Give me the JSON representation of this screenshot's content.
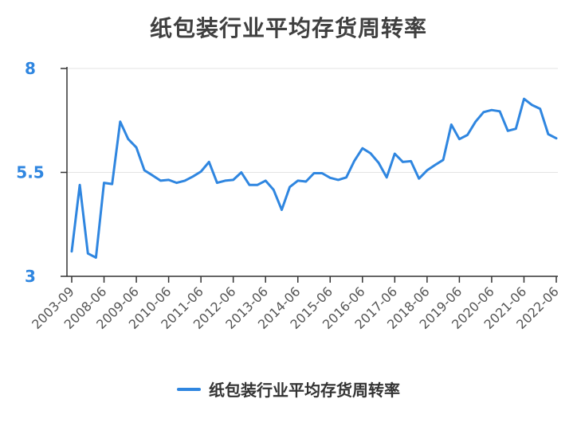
{
  "chart_data": {
    "type": "line",
    "title": "纸包装行业平均存货周转率",
    "xlabel": "",
    "ylabel": "",
    "ylim": [
      3,
      8
    ],
    "yticks": [
      "3",
      "5.5",
      "8"
    ],
    "xtick_labels": [
      "2003-09",
      "2008-06",
      "2009-06",
      "2010-06",
      "2011-06",
      "2012-06",
      "2013-06",
      "2014-06",
      "2015-06",
      "2016-06",
      "2017-06",
      "2018-06",
      "2019-06",
      "2020-06",
      "2021-06",
      "2022-06"
    ],
    "legend_position": "bottom",
    "grid": true,
    "line_color": "#2f86e0",
    "series": [
      {
        "name": "纸包装行业平均存货周转率",
        "values": [
          3.6,
          5.2,
          3.55,
          3.45,
          5.25,
          5.22,
          6.72,
          6.3,
          6.1,
          5.55,
          5.43,
          5.3,
          5.32,
          5.25,
          5.3,
          5.4,
          5.52,
          5.75,
          5.25,
          5.3,
          5.32,
          5.5,
          5.2,
          5.2,
          5.3,
          5.08,
          4.6,
          5.15,
          5.3,
          5.28,
          5.48,
          5.48,
          5.37,
          5.32,
          5.38,
          5.78,
          6.08,
          5.96,
          5.73,
          5.38,
          5.95,
          5.75,
          5.77,
          5.35,
          5.55,
          5.68,
          5.8,
          6.65,
          6.3,
          6.4,
          6.72,
          6.95,
          7.0,
          6.97,
          6.5,
          6.55,
          7.27,
          7.12,
          7.03,
          6.42,
          6.32
        ]
      }
    ]
  }
}
